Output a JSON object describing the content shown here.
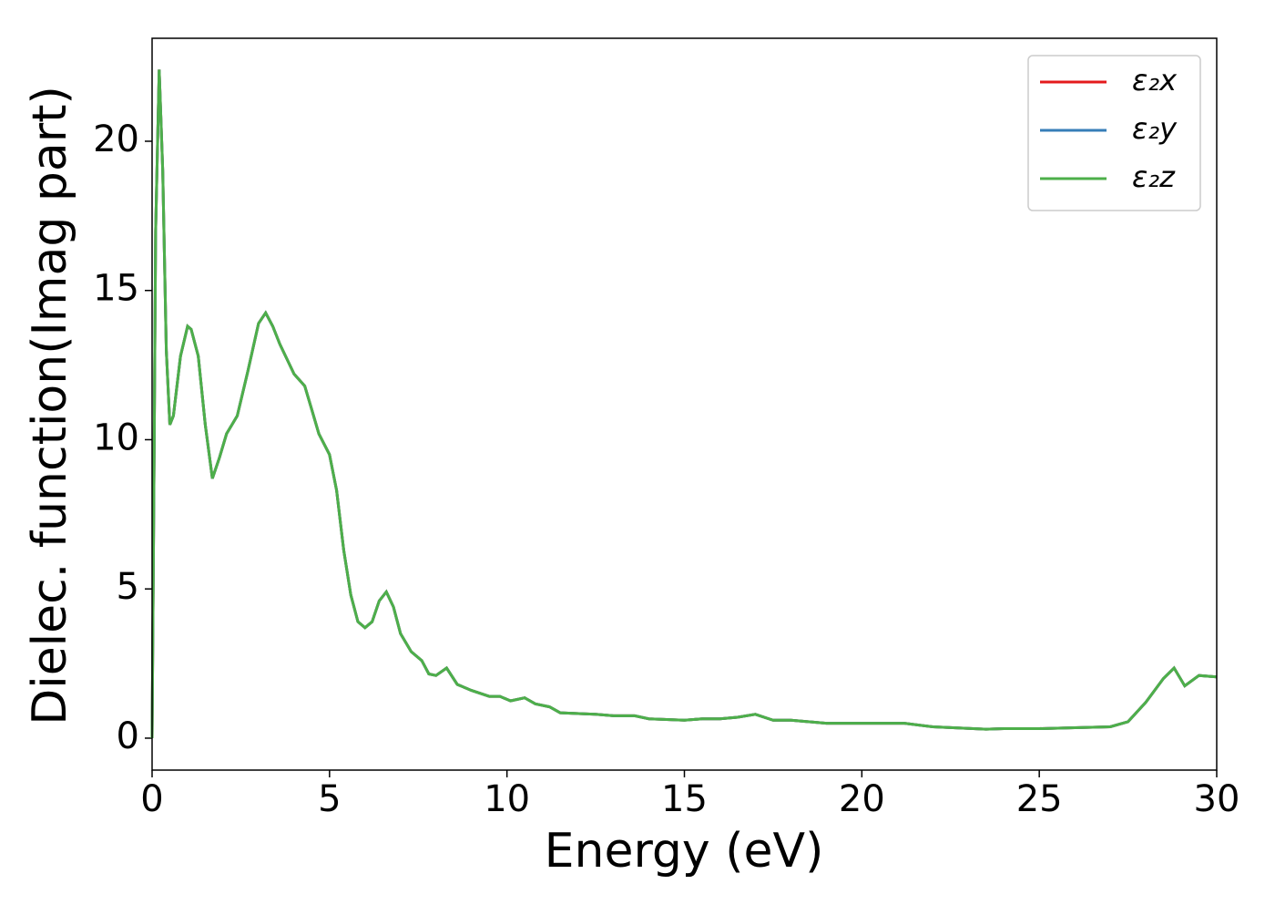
{
  "chart_data": {
    "type": "line",
    "xlabel": "Energy (eV)",
    "ylabel": "Dielec. function(Imag part)",
    "x": [
      0,
      0.05,
      0.1,
      0.2,
      0.3,
      0.4,
      0.5,
      0.6,
      0.8,
      1.0,
      1.1,
      1.3,
      1.5,
      1.7,
      1.9,
      2.1,
      2.4,
      2.7,
      3.0,
      3.2,
      3.4,
      3.6,
      3.8,
      4.0,
      4.3,
      4.5,
      4.7,
      5.0,
      5.2,
      5.4,
      5.6,
      5.8,
      6.0,
      6.2,
      6.4,
      6.6,
      6.8,
      7.0,
      7.3,
      7.6,
      7.8,
      8.0,
      8.3,
      8.6,
      9.0,
      9.5,
      9.8,
      10.1,
      10.5,
      10.8,
      11.2,
      11.5,
      12.5,
      13,
      13.6,
      14,
      15,
      15.5,
      16,
      16.5,
      17,
      17.5,
      18,
      19,
      20,
      20.5,
      21.2,
      22,
      23.5,
      24,
      25,
      26,
      27,
      27.5,
      28,
      28.5,
      28.8,
      29.1,
      29.5,
      30
    ],
    "series": [
      {
        "name": "ε₂x",
        "color": "#e41a1c",
        "values": [
          0,
          8,
          17,
          22.4,
          19,
          13,
          10.5,
          10.8,
          12.8,
          13.8,
          13.7,
          12.8,
          10.5,
          8.7,
          9.4,
          10.2,
          10.8,
          12.3,
          13.9,
          14.25,
          13.8,
          13.2,
          12.7,
          12.2,
          11.8,
          11.0,
          10.2,
          9.5,
          8.3,
          6.3,
          4.8,
          3.9,
          3.7,
          3.9,
          4.6,
          4.9,
          4.4,
          3.5,
          2.9,
          2.6,
          2.15,
          2.1,
          2.35,
          1.8,
          1.6,
          1.4,
          1.4,
          1.25,
          1.35,
          1.15,
          1.05,
          0.85,
          0.8,
          0.75,
          0.75,
          0.65,
          0.6,
          0.65,
          0.65,
          0.7,
          0.8,
          0.6,
          0.6,
          0.5,
          0.5,
          0.5,
          0.5,
          0.38,
          0.3,
          0.32,
          0.32,
          0.35,
          0.38,
          0.55,
          1.2,
          2,
          2.35,
          1.75,
          2.1,
          2.05
        ]
      },
      {
        "name": "ε₂y",
        "color": "#377eb8",
        "values": [
          0,
          8,
          17,
          22.4,
          19,
          13,
          10.5,
          10.8,
          12.8,
          13.8,
          13.7,
          12.8,
          10.5,
          8.7,
          9.4,
          10.2,
          10.8,
          12.3,
          13.9,
          14.25,
          13.8,
          13.2,
          12.7,
          12.2,
          11.8,
          11.0,
          10.2,
          9.5,
          8.3,
          6.3,
          4.8,
          3.9,
          3.7,
          3.9,
          4.6,
          4.9,
          4.4,
          3.5,
          2.9,
          2.6,
          2.15,
          2.1,
          2.35,
          1.8,
          1.6,
          1.4,
          1.4,
          1.25,
          1.35,
          1.15,
          1.05,
          0.85,
          0.8,
          0.75,
          0.75,
          0.65,
          0.6,
          0.65,
          0.65,
          0.7,
          0.8,
          0.6,
          0.6,
          0.5,
          0.5,
          0.5,
          0.5,
          0.38,
          0.3,
          0.32,
          0.32,
          0.35,
          0.38,
          0.55,
          1.2,
          2,
          2.35,
          1.75,
          2.1,
          2.05
        ]
      },
      {
        "name": "ε₂z",
        "color": "#4daf4a",
        "values": [
          0,
          8,
          17,
          22.4,
          19,
          13,
          10.5,
          10.8,
          12.8,
          13.8,
          13.7,
          12.8,
          10.5,
          8.7,
          9.4,
          10.2,
          10.8,
          12.3,
          13.9,
          14.25,
          13.8,
          13.2,
          12.7,
          12.2,
          11.8,
          11.0,
          10.2,
          9.5,
          8.3,
          6.3,
          4.8,
          3.9,
          3.7,
          3.9,
          4.6,
          4.9,
          4.4,
          3.5,
          2.9,
          2.6,
          2.15,
          2.1,
          2.35,
          1.8,
          1.6,
          1.4,
          1.4,
          1.25,
          1.35,
          1.15,
          1.05,
          0.85,
          0.8,
          0.75,
          0.75,
          0.65,
          0.6,
          0.65,
          0.65,
          0.7,
          0.8,
          0.6,
          0.6,
          0.5,
          0.5,
          0.5,
          0.5,
          0.38,
          0.3,
          0.32,
          0.32,
          0.35,
          0.38,
          0.55,
          1.2,
          2,
          2.35,
          1.75,
          2.1,
          2.05
        ]
      }
    ],
    "xlim": [
      0,
      30
    ],
    "xticks": [
      0,
      5,
      10,
      15,
      20,
      25,
      30
    ],
    "ylim": [
      -1.07,
      23.45
    ],
    "yticks": [
      0,
      5,
      10,
      15,
      20
    ],
    "legend": "upper right",
    "grid": false
  }
}
